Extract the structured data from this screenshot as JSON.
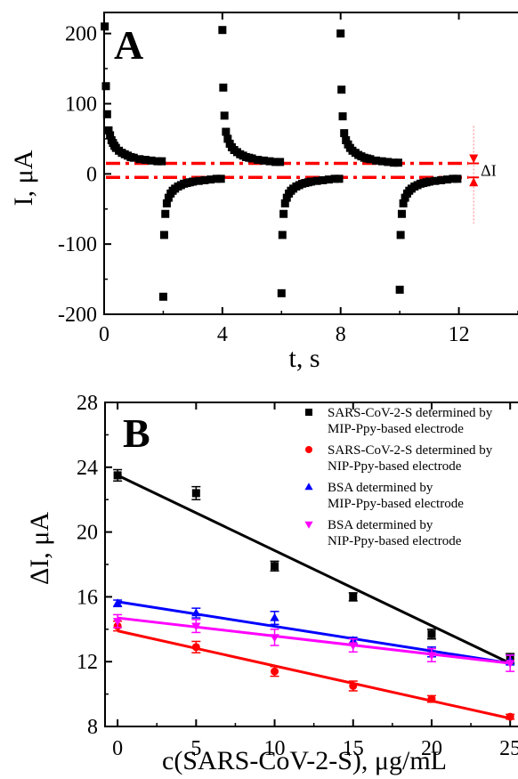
{
  "chart_data": [
    {
      "panel_label": "A",
      "type": "scatter",
      "xlabel": "t, s",
      "ylabel": "I, μA",
      "xlim": [
        0,
        14
      ],
      "ylim": [
        -200,
        230
      ],
      "xticks": [
        0,
        4,
        8,
        12
      ],
      "yticks": [
        -200,
        -100,
        0,
        100,
        200
      ],
      "grid": false,
      "series": [
        {
          "color": "#000000",
          "marker": "square",
          "x": [
            0.02,
            0.06,
            0.1,
            0.15,
            0.2,
            0.25,
            0.3,
            0.35,
            0.4,
            0.5,
            0.6,
            0.7,
            0.8,
            0.9,
            1.0,
            1.2,
            1.4,
            1.6,
            1.8,
            1.95,
            2.0,
            2.03,
            2.07,
            2.12,
            2.18,
            2.25,
            2.32,
            2.4,
            2.5,
            2.6,
            2.7,
            2.8,
            2.9,
            3.0,
            3.2,
            3.4,
            3.6,
            3.8,
            3.95,
            4.0,
            4.03,
            4.07,
            4.12,
            4.18,
            4.25,
            4.32,
            4.4,
            4.5,
            4.6,
            4.7,
            4.8,
            4.9,
            5.0,
            5.2,
            5.4,
            5.6,
            5.8,
            5.95,
            6.0,
            6.03,
            6.07,
            6.12,
            6.18,
            6.25,
            6.32,
            6.4,
            6.5,
            6.6,
            6.7,
            6.8,
            6.9,
            7.0,
            7.2,
            7.4,
            7.6,
            7.8,
            7.95,
            8.0,
            8.03,
            8.07,
            8.12,
            8.18,
            8.25,
            8.32,
            8.4,
            8.5,
            8.6,
            8.7,
            8.8,
            8.9,
            9.0,
            9.2,
            9.4,
            9.6,
            9.8,
            9.95,
            10.0,
            10.03,
            10.07,
            10.12,
            10.18,
            10.25,
            10.32,
            10.4,
            10.5,
            10.6,
            10.7,
            10.8,
            10.9,
            11.0,
            11.2,
            11.4,
            11.6,
            11.8,
            11.95
          ],
          "y": [
            210,
            125,
            85,
            62,
            55,
            48,
            44,
            40,
            37,
            33,
            30,
            28,
            26,
            24,
            23,
            21,
            20,
            19,
            18,
            18,
            -175,
            -87,
            -57,
            -42,
            -34,
            -28,
            -24,
            -21,
            -18,
            -16,
            -14,
            -13,
            -12,
            -11,
            -10,
            -9,
            -8,
            -7,
            -7,
            205,
            123,
            83,
            60,
            50,
            43,
            38,
            34,
            31,
            28,
            26,
            24,
            23,
            22,
            20,
            19,
            18,
            17,
            17,
            -170,
            -87,
            -57,
            -42,
            -34,
            -28,
            -24,
            -21,
            -18,
            -16,
            -14,
            -13,
            -12,
            -11,
            -10,
            -9,
            -8,
            -7,
            -7,
            200,
            120,
            82,
            58,
            48,
            42,
            37,
            33,
            30,
            27,
            25,
            23,
            22,
            21,
            19,
            18,
            17,
            16,
            16,
            -165,
            -87,
            -57,
            -42,
            -34,
            -28,
            -24,
            -21,
            -18,
            -16,
            -14,
            -13,
            -12,
            -11,
            -10,
            -9,
            -8,
            -7,
            -7
          ]
        }
      ],
      "reference_lines": [
        {
          "y": 15,
          "color": "#ff0000",
          "style": "dash-dot"
        },
        {
          "y": -5,
          "color": "#ff0000",
          "style": "dash-dot"
        }
      ],
      "annotation": {
        "text": "ΔI",
        "x": 12.5,
        "y_from": -5,
        "y_to": 15,
        "color": "#ff0000"
      }
    },
    {
      "panel_label": "B",
      "type": "scatter",
      "xlabel": "c(SARS-CoV-2-S), μg/mL",
      "ylabel": "ΔI, μA",
      "xlim": [
        -0.8,
        25.5
      ],
      "ylim": [
        8,
        28
      ],
      "xticks": [
        0,
        5,
        10,
        15,
        20,
        25
      ],
      "yticks": [
        8,
        12,
        16,
        20,
        24,
        28
      ],
      "grid": false,
      "legend_position": "top-right",
      "x": [
        0,
        5,
        10,
        15,
        20,
        25
      ],
      "series": [
        {
          "name": "SARS-CoV-2-S determined by MIP-Ppy-based electrode",
          "name_lines": [
            "SARS-CoV-2-S determined by",
            "MIP-Ppy-based electrode"
          ],
          "color": "#000000",
          "marker": "square",
          "values": [
            23.5,
            22.4,
            17.9,
            16.0,
            13.7,
            12.2
          ],
          "errors": [
            0.35,
            0.4,
            0.3,
            0.25,
            0.3,
            0.3
          ],
          "fit": [
            23.5,
            11.9
          ]
        },
        {
          "name": "SARS-CoV-2-S determined by NIP-Ppy-based electrode",
          "name_lines": [
            "SARS-CoV-2-S determined by",
            "NIP-Ppy-based electrode"
          ],
          "color": "#ff0000",
          "marker": "circle",
          "values": [
            14.2,
            12.9,
            11.4,
            10.5,
            9.7,
            8.6
          ],
          "errors": [
            0.3,
            0.35,
            0.3,
            0.3,
            0.2,
            0.15
          ],
          "fit": [
            13.9,
            8.5
          ]
        },
        {
          "name": "BSA determined by MIP-Ppy-based electrode",
          "name_lines": [
            "BSA determined by",
            "MIP-Ppy-based electrode"
          ],
          "color": "#0000ff",
          "marker": "triangle-up",
          "values": [
            15.6,
            15.0,
            14.7,
            13.3,
            12.6,
            12.1
          ],
          "errors": [
            0.2,
            0.3,
            0.4,
            0.2,
            0.3,
            0.3
          ],
          "fit": [
            15.7,
            11.9
          ]
        },
        {
          "name": "BSA determined by NIP-Ppy-based electrode",
          "name_lines": [
            "BSA determined by",
            "NIP-Ppy-based electrode"
          ],
          "color": "#ff00ff",
          "marker": "triangle-down",
          "values": [
            14.5,
            14.2,
            13.5,
            13.0,
            12.4,
            11.9
          ],
          "errors": [
            0.4,
            0.4,
            0.5,
            0.4,
            0.4,
            0.5
          ],
          "fit": [
            14.7,
            11.9
          ]
        }
      ]
    }
  ]
}
